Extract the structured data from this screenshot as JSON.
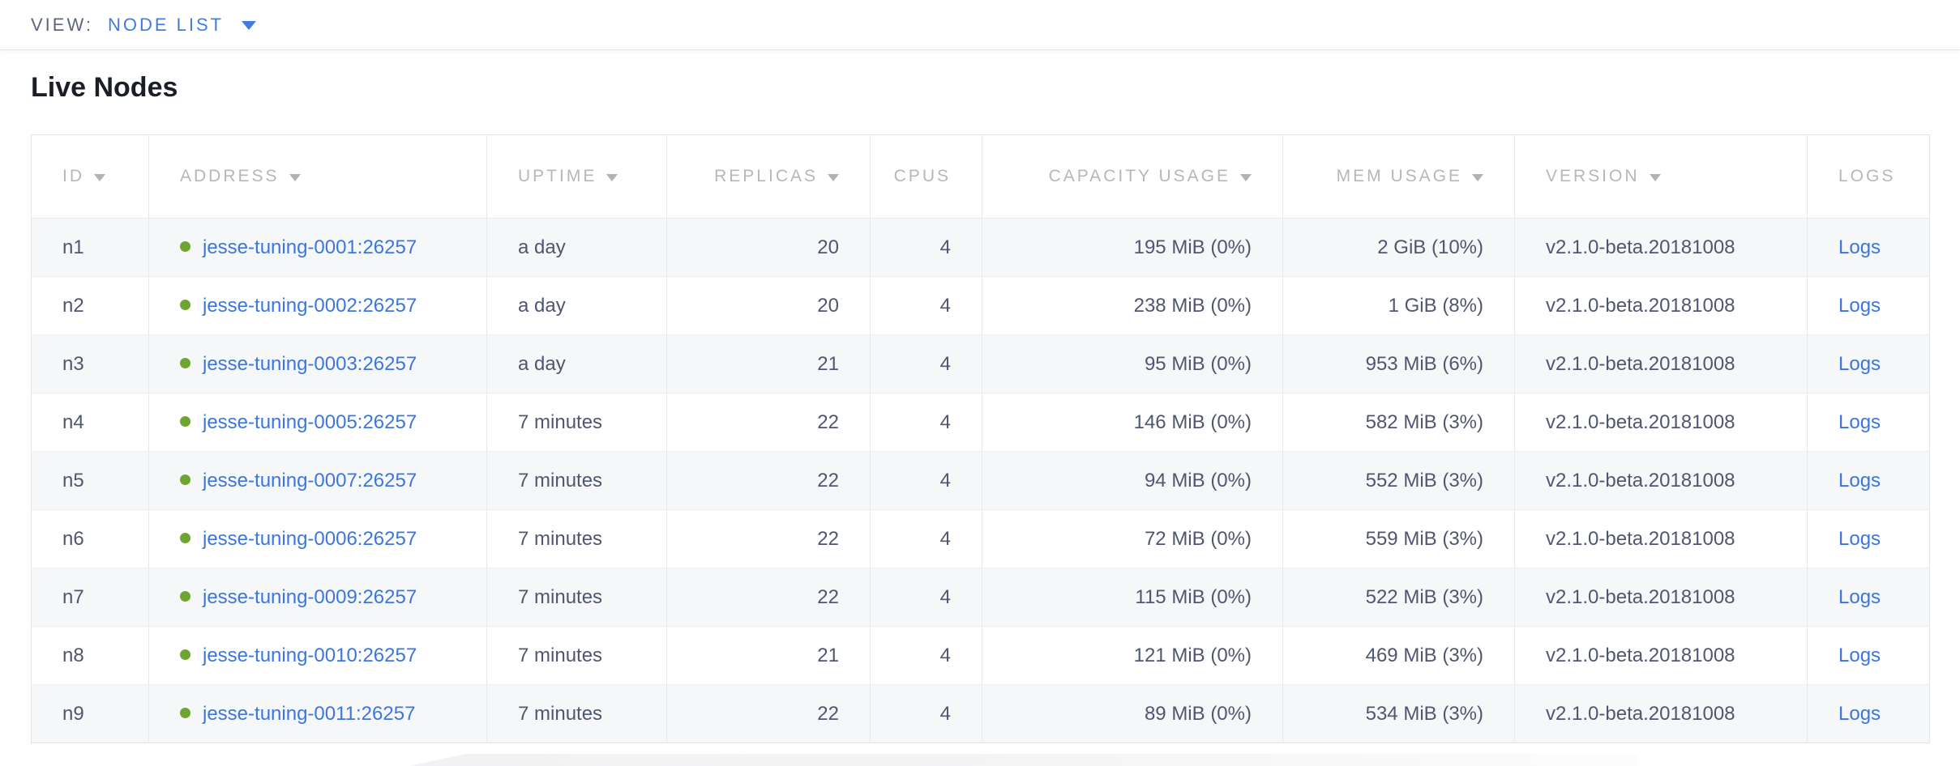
{
  "view_bar": {
    "label": "VIEW:",
    "selected": "NODE LIST"
  },
  "page": {
    "title": "Live Nodes"
  },
  "colors": {
    "accent_blue": "#3f7ce2",
    "link_blue": "#3b76df",
    "live_green": "#6ea431",
    "header_gray": "#b5b7bb",
    "text_dark": "#4f5770"
  },
  "table": {
    "columns": [
      {
        "key": "id",
        "label": "ID",
        "sortable": true,
        "align": "left"
      },
      {
        "key": "address",
        "label": "ADDRESS",
        "sortable": true,
        "align": "left",
        "type": "link-dot"
      },
      {
        "key": "uptime",
        "label": "UPTIME",
        "sortable": true,
        "align": "left"
      },
      {
        "key": "replicas",
        "label": "REPLICAS",
        "sortable": true,
        "align": "right"
      },
      {
        "key": "cpus",
        "label": "CPUS",
        "sortable": false,
        "align": "right"
      },
      {
        "key": "capacity",
        "label": "CAPACITY USAGE",
        "sortable": true,
        "align": "right"
      },
      {
        "key": "mem",
        "label": "MEM USAGE",
        "sortable": true,
        "align": "right"
      },
      {
        "key": "version",
        "label": "VERSION",
        "sortable": true,
        "align": "left"
      },
      {
        "key": "logs",
        "label": "LOGS",
        "sortable": false,
        "align": "left",
        "type": "link"
      }
    ],
    "rows": [
      {
        "id": "n1",
        "address": "jesse-tuning-0001:26257",
        "status": "live",
        "uptime": "a day",
        "replicas": "20",
        "cpus": "4",
        "capacity": "195 MiB (0%)",
        "mem": "2 GiB (10%)",
        "version": "v2.1.0-beta.20181008",
        "logs": "Logs"
      },
      {
        "id": "n2",
        "address": "jesse-tuning-0002:26257",
        "status": "live",
        "uptime": "a day",
        "replicas": "20",
        "cpus": "4",
        "capacity": "238 MiB (0%)",
        "mem": "1 GiB (8%)",
        "version": "v2.1.0-beta.20181008",
        "logs": "Logs"
      },
      {
        "id": "n3",
        "address": "jesse-tuning-0003:26257",
        "status": "live",
        "uptime": "a day",
        "replicas": "21",
        "cpus": "4",
        "capacity": "95 MiB (0%)",
        "mem": "953 MiB (6%)",
        "version": "v2.1.0-beta.20181008",
        "logs": "Logs"
      },
      {
        "id": "n4",
        "address": "jesse-tuning-0005:26257",
        "status": "live",
        "uptime": "7 minutes",
        "replicas": "22",
        "cpus": "4",
        "capacity": "146 MiB (0%)",
        "mem": "582 MiB (3%)",
        "version": "v2.1.0-beta.20181008",
        "logs": "Logs"
      },
      {
        "id": "n5",
        "address": "jesse-tuning-0007:26257",
        "status": "live",
        "uptime": "7 minutes",
        "replicas": "22",
        "cpus": "4",
        "capacity": "94 MiB (0%)",
        "mem": "552 MiB (3%)",
        "version": "v2.1.0-beta.20181008",
        "logs": "Logs"
      },
      {
        "id": "n6",
        "address": "jesse-tuning-0006:26257",
        "status": "live",
        "uptime": "7 minutes",
        "replicas": "22",
        "cpus": "4",
        "capacity": "72 MiB (0%)",
        "mem": "559 MiB (3%)",
        "version": "v2.1.0-beta.20181008",
        "logs": "Logs"
      },
      {
        "id": "n7",
        "address": "jesse-tuning-0009:26257",
        "status": "live",
        "uptime": "7 minutes",
        "replicas": "22",
        "cpus": "4",
        "capacity": "115 MiB (0%)",
        "mem": "522 MiB (3%)",
        "version": "v2.1.0-beta.20181008",
        "logs": "Logs"
      },
      {
        "id": "n8",
        "address": "jesse-tuning-0010:26257",
        "status": "live",
        "uptime": "7 minutes",
        "replicas": "21",
        "cpus": "4",
        "capacity": "121 MiB (0%)",
        "mem": "469 MiB (3%)",
        "version": "v2.1.0-beta.20181008",
        "logs": "Logs"
      },
      {
        "id": "n9",
        "address": "jesse-tuning-0011:26257",
        "status": "live",
        "uptime": "7 minutes",
        "replicas": "22",
        "cpus": "4",
        "capacity": "89 MiB (0%)",
        "mem": "534 MiB (3%)",
        "version": "v2.1.0-beta.20181008",
        "logs": "Logs"
      }
    ]
  }
}
